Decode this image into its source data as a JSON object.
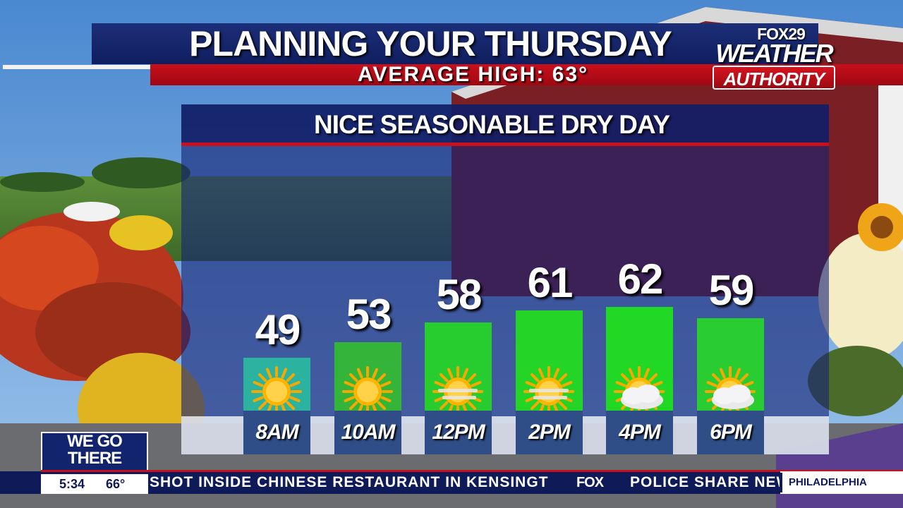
{
  "header": {
    "title": "PLANNING YOUR THURSDAY",
    "subtitle": "AVERAGE HIGH: 63°"
  },
  "logo": {
    "network": "FOX29",
    "line1": "WEATHER",
    "line2": "AUTHORITY"
  },
  "chart_data": {
    "type": "bar",
    "title": "NICE SEASONABLE DRY DAY",
    "categories": [
      "8AM",
      "10AM",
      "12PM",
      "2PM",
      "4PM",
      "6PM"
    ],
    "values": [
      49,
      53,
      58,
      61,
      62,
      59
    ],
    "conditions": [
      "sunny",
      "sunny",
      "sunny-haze",
      "sunny-haze",
      "partly-cloudy",
      "partly-cloudy"
    ],
    "bar_colors": [
      "#2bb3a0",
      "#34b53a",
      "#27cc2e",
      "#24d427",
      "#21d924",
      "#2acd31"
    ],
    "ylim": [
      0,
      70
    ]
  },
  "ticker": {
    "headline": "SHOT INSIDE CHINESE RESTAURANT IN KENSINGTON",
    "brand": "FOX",
    "headline2": "POLICE SHARE NEW",
    "city": "PHILADELPHIA"
  },
  "badge": {
    "line1": "WE GO",
    "line2": "THERE",
    "time": "5:34",
    "temp": "66°"
  },
  "colors": {
    "navy": "#0f1e5e",
    "red": "#c8101c"
  }
}
